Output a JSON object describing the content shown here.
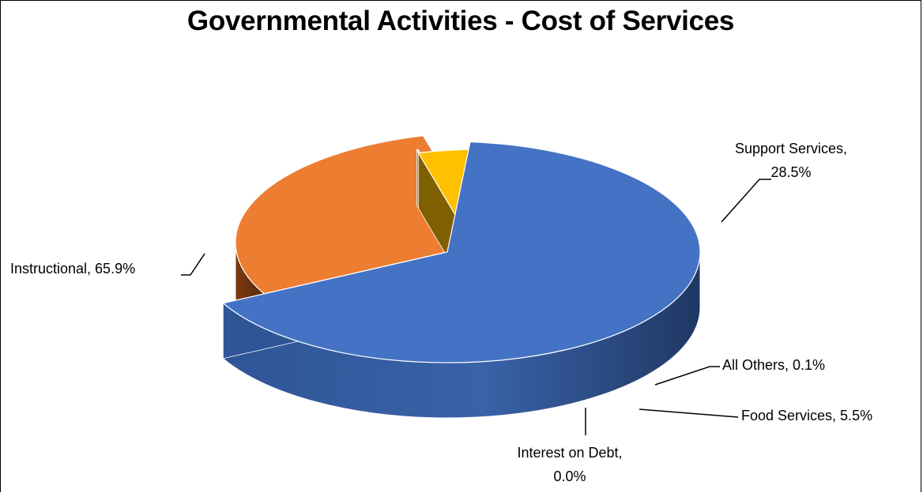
{
  "chart_data": {
    "type": "pie",
    "title": "Governmental Activities - Cost of Services",
    "categories": [
      "Instructional",
      "Support Services",
      "All Others",
      "Food Services",
      "Interest on Debt"
    ],
    "values": [
      65.9,
      28.5,
      0.1,
      5.5,
      0.0
    ],
    "data_labels": [
      {
        "line1": "Instructional, 65.9%",
        "line2": ""
      },
      {
        "line1": "Support Services,",
        "line2": "28.5%"
      },
      {
        "line1": "All Others, 0.1%",
        "line2": ""
      },
      {
        "line1": "Food Services, 5.5%",
        "line2": ""
      },
      {
        "line1": "Interest on Debt,",
        "line2": "0.0%"
      }
    ],
    "colors": [
      "#4472C4",
      "#ED7D31",
      "#A5A5A5",
      "#FFC000",
      "#5B9BD5"
    ],
    "side_colors": [
      "#2F5597",
      "#843C0C",
      "#7F7F7F",
      "#7F6000",
      "#2E75B6"
    ],
    "style": "3d-exploded"
  }
}
